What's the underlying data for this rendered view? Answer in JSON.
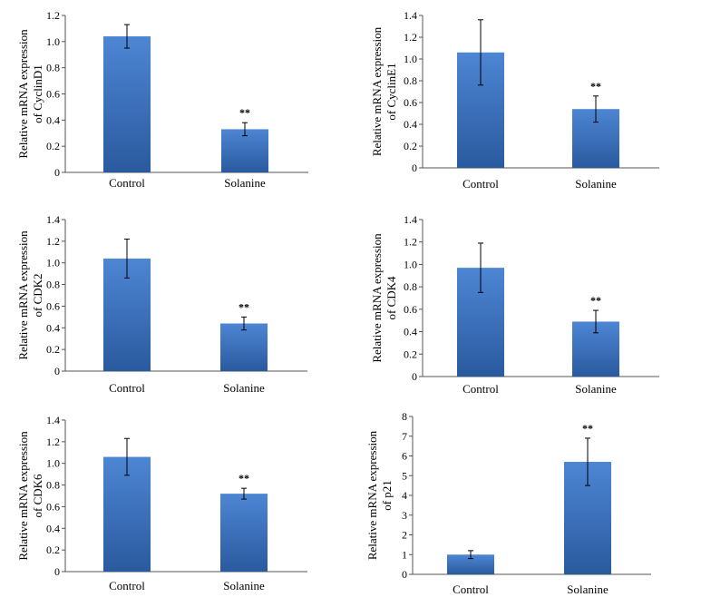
{
  "colors": {
    "bar_top": "#4d86d4",
    "bar_bottom": "#2a5a9e",
    "axis": "#555555",
    "error": "#000000"
  },
  "chart_data": [
    {
      "type": "bar",
      "categories": [
        "Control",
        "Solanine"
      ],
      "values": [
        1.04,
        0.33
      ],
      "errors": [
        0.09,
        0.05
      ],
      "significance": [
        "",
        "**"
      ],
      "ylabel": [
        "Relative mRNA expression",
        "of CyclinD1"
      ],
      "ylim": [
        0,
        1.2
      ],
      "yticks": [
        "0",
        "0.2",
        "0.4",
        "0.6",
        "0.8",
        "1.0",
        "1.2"
      ]
    },
    {
      "type": "bar",
      "categories": [
        "Control",
        "Solanine"
      ],
      "values": [
        1.06,
        0.54
      ],
      "errors": [
        0.3,
        0.12
      ],
      "significance": [
        "",
        "**"
      ],
      "ylabel": [
        "Relative mRNA expression",
        "of CyclinE1"
      ],
      "ylim": [
        0,
        1.4
      ],
      "yticks": [
        "0",
        "0.2",
        "0.4",
        "0.6",
        "0.8",
        "1.0",
        "1.2",
        "1.4"
      ]
    },
    {
      "type": "bar",
      "categories": [
        "Control",
        "Solanine"
      ],
      "values": [
        1.04,
        0.44
      ],
      "errors": [
        0.18,
        0.06
      ],
      "significance": [
        "",
        "**"
      ],
      "ylabel": [
        "Relative mRNA expression",
        "of CDK2"
      ],
      "ylim": [
        0,
        1.4
      ],
      "yticks": [
        "0",
        "0.2",
        "0.4",
        "0.6",
        "0.8",
        "1.0",
        "1.2",
        "1.4"
      ]
    },
    {
      "type": "bar",
      "categories": [
        "Control",
        "Solanine"
      ],
      "values": [
        0.97,
        0.49
      ],
      "errors": [
        0.22,
        0.1
      ],
      "significance": [
        "",
        "**"
      ],
      "ylabel": [
        "Relative mRNA expression",
        "of CDK4"
      ],
      "ylim": [
        0,
        1.4
      ],
      "yticks": [
        "0",
        "0.2",
        "0.4",
        "0.6",
        "0.8",
        "1.0",
        "1.2",
        "1.4"
      ]
    },
    {
      "type": "bar",
      "categories": [
        "Control",
        "Solanine"
      ],
      "values": [
        1.06,
        0.72
      ],
      "errors": [
        0.17,
        0.05
      ],
      "significance": [
        "",
        "**"
      ],
      "ylabel": [
        "Relative mRNA expression",
        "of CDK6"
      ],
      "ylim": [
        0,
        1.4
      ],
      "yticks": [
        "0",
        "0.2",
        "0.4",
        "0.6",
        "0.8",
        "1.0",
        "1.2",
        "1.4"
      ]
    },
    {
      "type": "bar",
      "categories": [
        "Control",
        "Solanine"
      ],
      "values": [
        1.0,
        5.7
      ],
      "errors": [
        0.2,
        1.2
      ],
      "significance": [
        "",
        "**"
      ],
      "ylabel": [
        "Relative mRNA expression",
        "of p21"
      ],
      "ylim": [
        0,
        8
      ],
      "yticks": [
        "0",
        "1",
        "2",
        "3",
        "4",
        "5",
        "6",
        "7",
        "8"
      ]
    }
  ]
}
